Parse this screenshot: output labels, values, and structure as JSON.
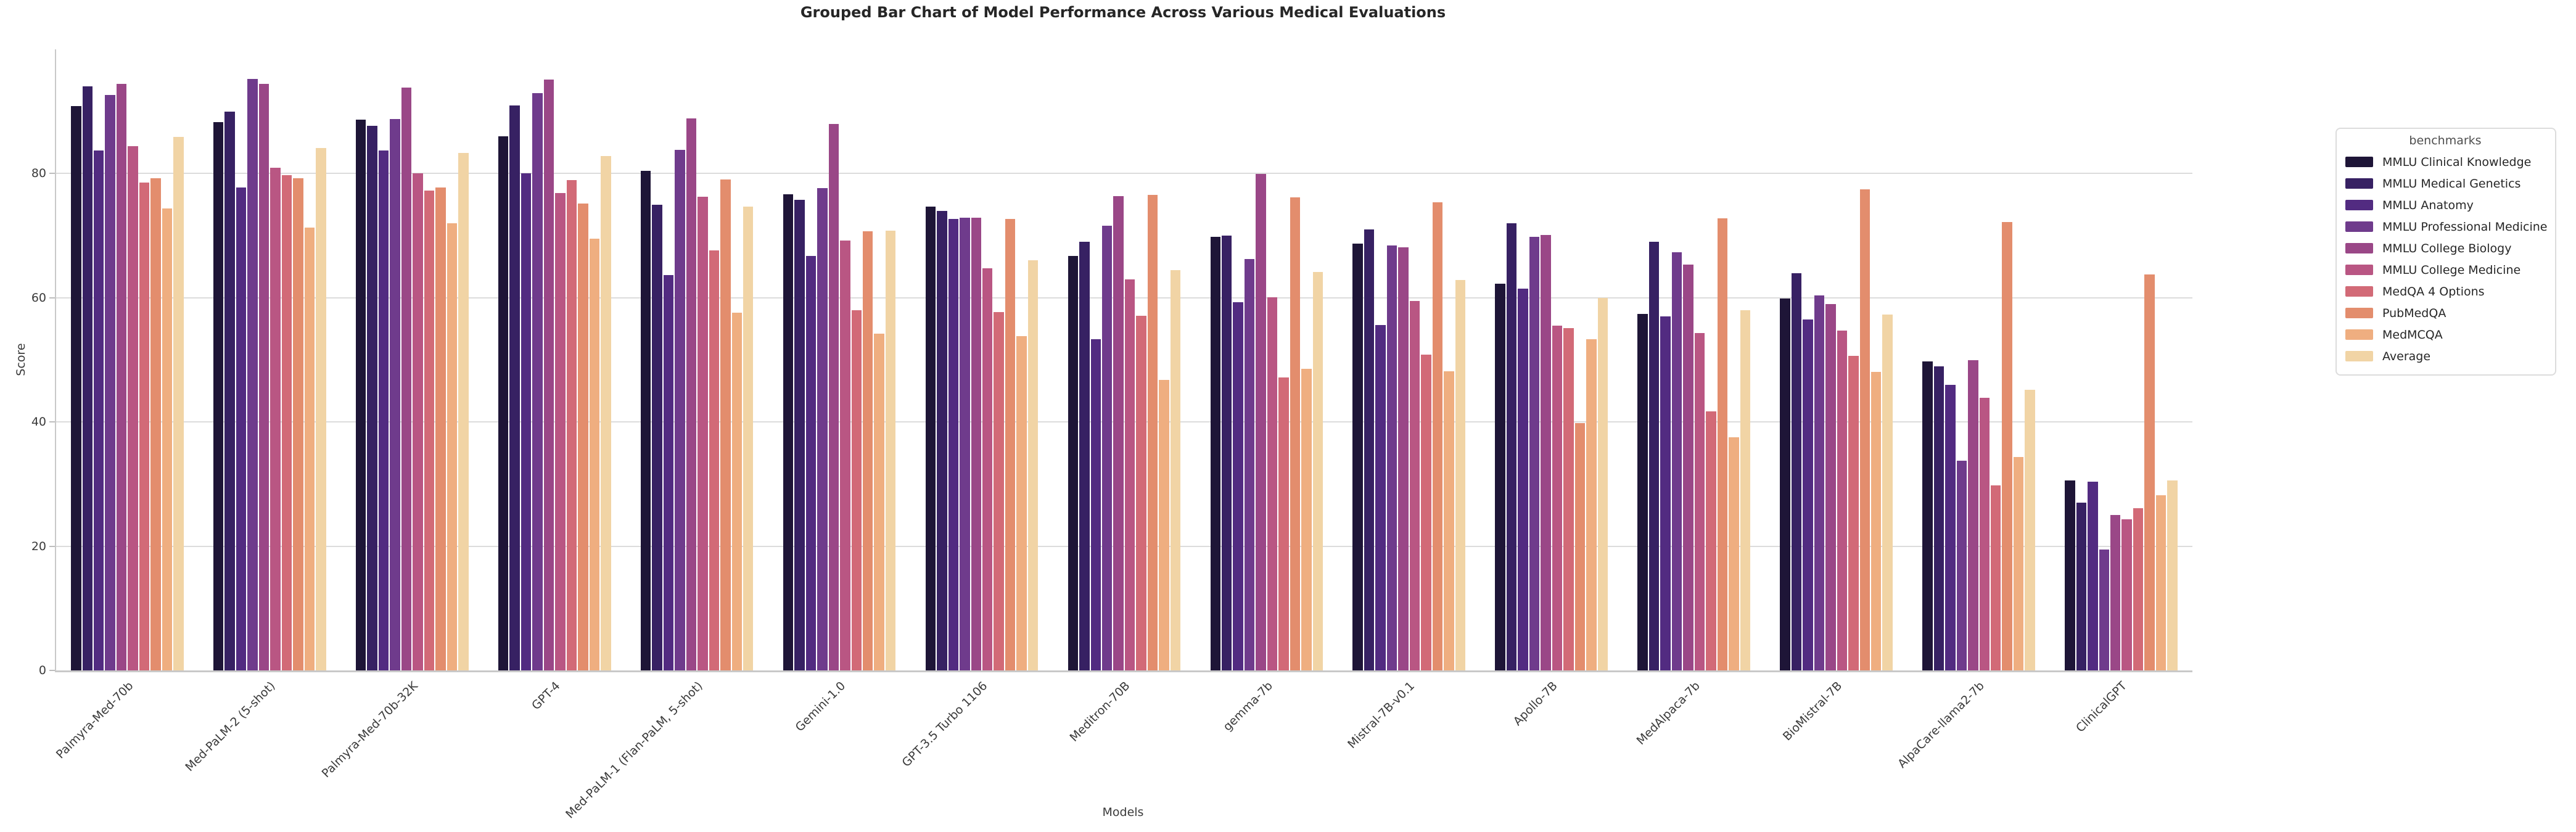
{
  "chart_data": {
    "type": "bar",
    "title": "Grouped Bar Chart of Model Performance Across Various Medical Evaluations",
    "xlabel": "Models",
    "ylabel": "Score",
    "ylim": [
      0,
      100
    ],
    "yticks": [
      0,
      20,
      40,
      60,
      80
    ],
    "gridlines": [
      20,
      40,
      60,
      80
    ],
    "grid": true,
    "legend_title": "benchmarks",
    "legend_position": "right",
    "categories": [
      "Palmyra-Med-70b",
      "Med-PaLM-2 (5-shot)",
      "Palmyra-Med-70b-32K",
      "GPT-4",
      "Med-PaLM-1 (Flan-PaLM, 5-shot)",
      "Gemini-1.0",
      "GPT-3.5 Turbo 1106",
      "Meditron-70B",
      "gemma-7b",
      "Mistral-7B-v0.1",
      "Apollo-7B",
      "MedAlpaca-7b",
      "BioMistral-7B",
      "AlpaCare-llama2-7b",
      "ClinicalGPT"
    ],
    "series": [
      {
        "name": "MMLU Clinical Knowledge",
        "color": "#1e1537",
        "values": [
          90.9,
          88.3,
          88.7,
          86.0,
          80.4,
          76.7,
          74.7,
          66.7,
          69.8,
          68.7,
          62.3,
          57.4,
          59.9,
          49.8,
          30.6
        ]
      },
      {
        "name": "MMLU Medical Genetics",
        "color": "#372163",
        "values": [
          94.0,
          90.0,
          87.7,
          91.0,
          75.0,
          75.8,
          74.0,
          69.0,
          70.0,
          71.0,
          72.0,
          69.0,
          64.0,
          49.0,
          27.0
        ]
      },
      {
        "name": "MMLU Anatomy",
        "color": "#522b81",
        "values": [
          83.7,
          77.8,
          83.7,
          80.0,
          63.7,
          66.7,
          72.7,
          53.3,
          59.3,
          55.6,
          61.5,
          57.0,
          56.5,
          46.0,
          30.4
        ]
      },
      {
        "name": "MMLU Professional Medicine",
        "color": "#6f3b8c",
        "values": [
          92.7,
          95.2,
          88.8,
          93.0,
          83.8,
          77.7,
          72.9,
          71.6,
          66.2,
          68.4,
          69.8,
          67.3,
          60.4,
          33.8,
          19.5
        ]
      },
      {
        "name": "MMLU College Biology",
        "color": "#9a4787",
        "values": [
          94.4,
          94.4,
          93.8,
          95.1,
          88.9,
          88.0,
          72.9,
          76.4,
          79.9,
          68.1,
          70.1,
          65.3,
          59.0,
          50.0,
          25.0
        ]
      },
      {
        "name": "MMLU College Medicine",
        "color": "#b95683",
        "values": [
          84.4,
          80.9,
          80.0,
          76.9,
          76.3,
          69.2,
          64.7,
          63.0,
          60.1,
          59.5,
          55.5,
          54.3,
          54.7,
          43.9,
          24.3
        ]
      },
      {
        "name": "MedQA 4 Options",
        "color": "#d26a77",
        "values": [
          78.6,
          79.7,
          77.3,
          78.9,
          67.6,
          58.0,
          57.7,
          57.1,
          47.2,
          50.8,
          55.1,
          41.7,
          50.6,
          29.8,
          26.1
        ]
      },
      {
        "name": "PubMedQA",
        "color": "#e38d6d",
        "values": [
          79.2,
          79.2,
          77.8,
          75.2,
          79.0,
          70.7,
          72.7,
          76.6,
          76.2,
          75.4,
          39.8,
          72.8,
          77.5,
          72.2,
          63.8
        ]
      },
      {
        "name": "MedMCQA",
        "color": "#efae80",
        "values": [
          74.4,
          71.3,
          72.0,
          69.5,
          57.6,
          54.2,
          53.8,
          46.8,
          48.6,
          48.2,
          53.3,
          37.5,
          48.1,
          34.4,
          28.2
        ]
      },
      {
        "name": "Average",
        "color": "#f1d4a5",
        "values": [
          85.9,
          84.1,
          83.3,
          82.8,
          74.7,
          70.8,
          66.0,
          64.5,
          64.2,
          62.9,
          60.0,
          58.0,
          57.3,
          45.2,
          30.6
        ]
      }
    ]
  }
}
